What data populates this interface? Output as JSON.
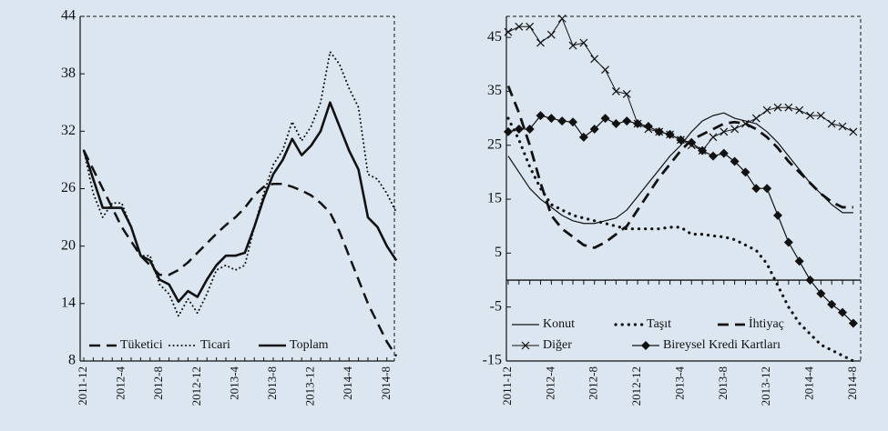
{
  "chart_data": [
    {
      "type": "line",
      "categories": [
        "2011-12",
        null,
        null,
        null,
        "2012-4",
        null,
        null,
        null,
        "2012-8",
        null,
        null,
        null,
        "2012-12",
        null,
        null,
        null,
        "2013-4",
        null,
        null,
        null,
        "2013-8",
        null,
        null,
        null,
        "2013-12",
        null,
        null,
        null,
        "2014-4",
        null,
        null,
        null,
        "2014-8",
        null
      ],
      "ylim": [
        8,
        44
      ],
      "yticks": [
        8,
        14,
        20,
        26,
        32,
        38,
        44
      ],
      "legend": "lower center",
      "series": [
        {
          "name": "Tüketici",
          "color": "#111111",
          "dash": "dashed",
          "width": 2.5,
          "values": [
            30,
            28,
            26,
            24,
            22,
            20.5,
            19,
            18,
            17,
            17,
            17.5,
            18.3,
            19.3,
            20.3,
            21.3,
            22.2,
            23,
            24,
            25.3,
            26.2,
            26.5,
            26.5,
            26.2,
            25.8,
            25.3,
            24.5,
            23.5,
            21.5,
            19,
            16.5,
            14,
            12,
            10,
            8.5
          ]
        },
        {
          "name": "Ticari",
          "color": "#111111",
          "dash": "dotted",
          "width": 2,
          "values": [
            30,
            25.5,
            23,
            24.5,
            24.5,
            22,
            19,
            19,
            16,
            15,
            12.7,
            14.5,
            13,
            15,
            17.5,
            18,
            17.5,
            18,
            22,
            25.5,
            28.5,
            30,
            33,
            31,
            32.5,
            35,
            40.3,
            39,
            36.5,
            34.5,
            27.5,
            27,
            25.5,
            23.5
          ]
        },
        {
          "name": "Toplam",
          "color": "#111111",
          "dash": "solid",
          "width": 2.6,
          "values": [
            30,
            27,
            24,
            24,
            24,
            22,
            19,
            18.5,
            16.5,
            16,
            14.2,
            15.3,
            14.7,
            16.5,
            18,
            19,
            19,
            19.3,
            22,
            25,
            27.5,
            29,
            31.2,
            29.5,
            30.5,
            32,
            35,
            32.5,
            30,
            28,
            23,
            22,
            20,
            18.5
          ]
        }
      ]
    },
    {
      "type": "line",
      "categories": [
        "2011-12",
        null,
        null,
        null,
        "2012-4",
        null,
        null,
        null,
        "2012-8",
        null,
        null,
        null,
        "2012-12",
        null,
        null,
        null,
        "2013-4",
        null,
        null,
        null,
        "2013-8",
        null,
        null,
        null,
        "2013-12",
        null,
        null,
        null,
        "2014-4",
        null,
        null,
        null,
        "2014-8"
      ],
      "ylim": [
        -15,
        48.9
      ],
      "yticks": [
        -15,
        -5,
        5,
        15,
        25,
        35,
        45
      ],
      "legend": "lower center",
      "series": [
        {
          "name": "Konut",
          "color": "#111111",
          "dash": "solid",
          "width": 1.2,
          "values": [
            23,
            20,
            17,
            15,
            13.5,
            12,
            11,
            10.5,
            10.5,
            11,
            11.5,
            13,
            15.5,
            18,
            20.5,
            23,
            25,
            27.5,
            29.5,
            30.5,
            31,
            30,
            29.5,
            29,
            27.5,
            25.5,
            23,
            20.5,
            18,
            16,
            14,
            12.5,
            12.5
          ]
        },
        {
          "name": "Taşıt",
          "color": "#111111",
          "dash": "dotted",
          "width": 3.2,
          "values": [
            30,
            26,
            21,
            17,
            14,
            13,
            12,
            11.5,
            11,
            10.5,
            10,
            9.5,
            9.5,
            9.5,
            9.5,
            9.8,
            9.8,
            8.5,
            8.5,
            8.2,
            8,
            7.5,
            6.5,
            5.5,
            3,
            -1,
            -5,
            -8,
            -10,
            -12,
            -13,
            -14,
            -15
          ]
        },
        {
          "name": "İhtiyaç",
          "color": "#111111",
          "dash": "dashed",
          "width": 2.8,
          "values": [
            36,
            31,
            25,
            18,
            12,
            9.5,
            8,
            6.5,
            6,
            7,
            8.5,
            10,
            13,
            16,
            19,
            21.5,
            24,
            26,
            27,
            28,
            29,
            29.3,
            29,
            28,
            26.5,
            24.5,
            22,
            20,
            18,
            16,
            14.5,
            13.5,
            13.5
          ]
        },
        {
          "name": "Diğer",
          "color": "#111111",
          "dash": "solid",
          "width": 1,
          "marker": "x",
          "values": [
            46,
            47,
            47,
            44,
            45.5,
            48.5,
            43.5,
            44,
            41,
            39,
            35,
            34.5,
            29,
            28,
            27.5,
            27,
            26,
            25,
            24,
            26.5,
            27.5,
            28,
            29,
            30,
            31.5,
            32,
            32,
            31.5,
            30.5,
            30.5,
            29,
            28.5,
            27.5
          ]
        },
        {
          "name": "Bireysel Kredi Kartları",
          "color": "#111111",
          "dash": "solid",
          "width": 1.2,
          "marker": "diamond",
          "values": [
            27.5,
            28,
            28,
            30.5,
            30,
            29.5,
            29.3,
            26.5,
            28,
            30,
            29,
            29.5,
            29,
            28.5,
            27.5,
            27,
            26,
            25.5,
            24,
            23,
            23.5,
            22,
            20,
            17,
            17,
            12,
            7,
            3.5,
            0,
            -2.5,
            -4.5,
            -6,
            -8
          ]
        }
      ]
    }
  ]
}
